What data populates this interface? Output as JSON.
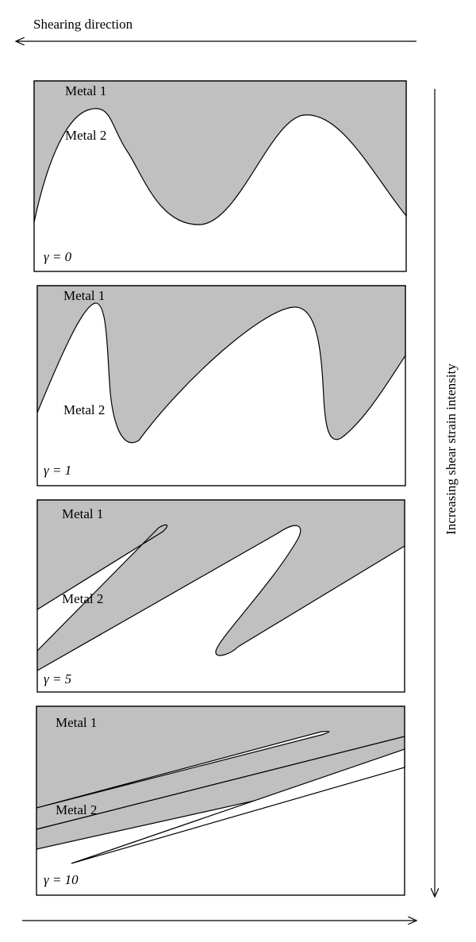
{
  "header": {
    "title": "Shearing direction"
  },
  "side_label": "Increasing shear strain intensity",
  "panels": [
    {
      "upper": "Metal 1",
      "lower": "Metal 2",
      "strain": "γ = 0"
    },
    {
      "upper": "Metal 1",
      "lower": "Metal 2",
      "strain": "γ = 1"
    },
    {
      "upper": "Metal 1",
      "lower": "Metal 2",
      "strain": "γ = 5"
    },
    {
      "upper": "Metal 1",
      "lower": "Metal 2",
      "strain": "γ = 10"
    }
  ]
}
